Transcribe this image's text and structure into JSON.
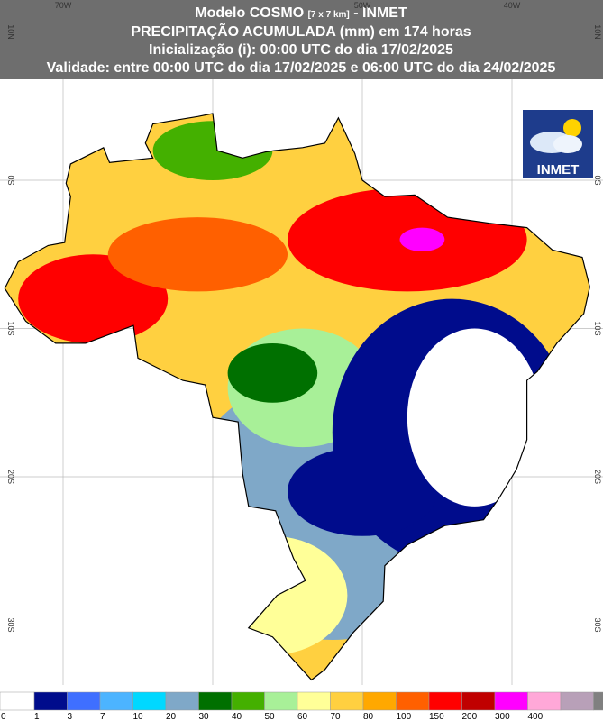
{
  "header": {
    "line1": [
      "Modelo COSMO",
      "[7 x 7 km]",
      "- INMET"
    ],
    "line2": "PRECIPITAÇÃO ACUMULADA (mm) em 174 horas",
    "line3": "Inicialização (i): 00:00 UTC do dia 17/02/2025",
    "line4": "Validade: entre 00:00 UTC do dia 17/02/2025 e 06:00 UTC do dia 24/02/2025"
  },
  "map": {
    "lon_labels": [
      "70W",
      "50W",
      "40W"
    ],
    "lat_labels": [
      "10N",
      "0S",
      "10S",
      "20S",
      "30S"
    ]
  },
  "logo": "INMET",
  "legend": {
    "labels": [
      0,
      1,
      3,
      7,
      10,
      20,
      30,
      40,
      50,
      60,
      70,
      80,
      100,
      150,
      200,
      300,
      400
    ],
    "colors": [
      "#ffffff",
      "#000c8c",
      "#3f6fff",
      "#4cb4ff",
      "#00d8ff",
      "#7fa8c8",
      "#007000",
      "#44b000",
      "#a8f098",
      "#ffff98",
      "#ffd040",
      "#ffa800",
      "#ff6000",
      "#ff0000",
      "#c00000",
      "#ff00ff",
      "#ffa8d8",
      "#b8a0b8",
      "#808080"
    ]
  }
}
